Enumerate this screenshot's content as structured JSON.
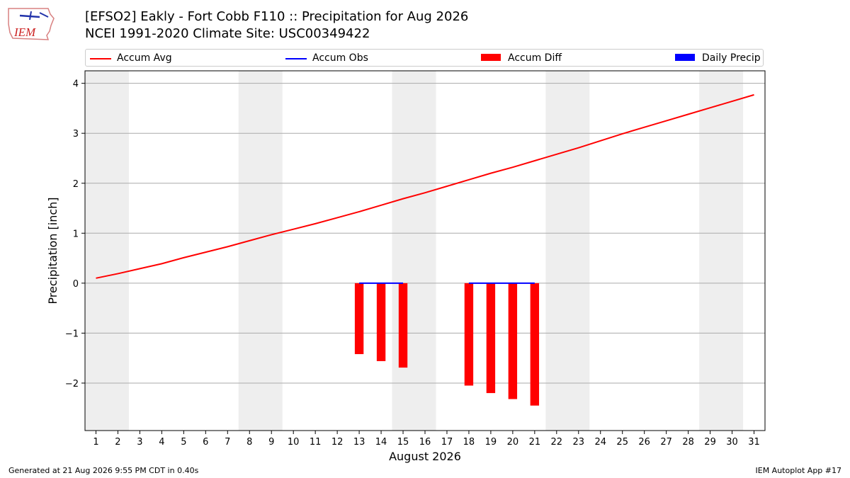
{
  "header": {
    "title_line1": "[EFSO2] Eakly - Fort Cobb F110 :: Precipitation for Aug 2026",
    "title_line2": "NCEI 1991-2020 Climate Site: USC00349422",
    "logo_text": "IEM"
  },
  "legend": {
    "items": [
      {
        "label": "Accum Avg",
        "kind": "line",
        "color": "#ff0000"
      },
      {
        "label": "Accum Obs",
        "kind": "line",
        "color": "#0000ff"
      },
      {
        "label": "Accum Diff",
        "kind": "box",
        "color": "#ff0000"
      },
      {
        "label": "Daily Precip",
        "kind": "box",
        "color": "#0000ff"
      }
    ]
  },
  "footer": {
    "generated": "Generated at 21 Aug 2026 9:55 PM CDT in 0.40s",
    "app": "IEM Autoplot App #17"
  },
  "chart_data": {
    "type": "line",
    "xlabel": "August 2026",
    "ylabel": "Precipitation [inch]",
    "x": [
      1,
      2,
      3,
      4,
      5,
      6,
      7,
      8,
      9,
      10,
      11,
      12,
      13,
      14,
      15,
      16,
      17,
      18,
      19,
      20,
      21,
      22,
      23,
      24,
      25,
      26,
      27,
      28,
      29,
      30,
      31
    ],
    "xlim": [
      0.5,
      31.5
    ],
    "ylim": [
      -2.95,
      4.25
    ],
    "yticks": [
      4,
      3,
      2,
      1,
      0,
      -1,
      -2
    ],
    "ytick_labels": [
      "4",
      "3",
      "2",
      "1",
      "0",
      "−1",
      "−2"
    ],
    "grid": true,
    "weekend_shading": [
      [
        0.5,
        2.5
      ],
      [
        7.5,
        9.5
      ],
      [
        14.5,
        16.5
      ],
      [
        21.5,
        23.5
      ],
      [
        28.5,
        30.5
      ]
    ],
    "shading_color": "#eeeeee",
    "series": [
      {
        "name": "Accum Avg",
        "type": "line",
        "color": "#ff0000",
        "x": [
          1,
          2,
          3,
          4,
          5,
          6,
          7,
          8,
          9,
          10,
          11,
          12,
          13,
          14,
          15,
          16,
          17,
          18,
          19,
          20,
          21,
          22,
          23,
          24,
          25,
          26,
          27,
          28,
          29,
          30,
          31
        ],
        "values": [
          0.1,
          0.19,
          0.29,
          0.39,
          0.51,
          0.62,
          0.73,
          0.85,
          0.97,
          1.08,
          1.19,
          1.31,
          1.43,
          1.56,
          1.69,
          1.81,
          1.94,
          2.07,
          2.2,
          2.32,
          2.45,
          2.58,
          2.71,
          2.85,
          2.99,
          3.12,
          3.25,
          3.38,
          3.51,
          3.64,
          3.77
        ]
      },
      {
        "name": "Accum Obs",
        "type": "line",
        "color": "#0000ff",
        "x": [
          13,
          14,
          15,
          18,
          19,
          20,
          21
        ],
        "values": [
          0,
          0,
          0,
          0,
          0,
          0,
          0
        ],
        "segments": [
          [
            13,
            15
          ],
          [
            18,
            21
          ]
        ]
      },
      {
        "name": "Accum Diff",
        "type": "bar",
        "color": "#ff0000",
        "x": [
          13,
          14,
          15,
          18,
          19,
          20,
          21
        ],
        "values": [
          -1.42,
          -1.56,
          -1.69,
          -2.05,
          -2.2,
          -2.32,
          -2.45
        ]
      },
      {
        "name": "Daily Precip",
        "type": "bar",
        "color": "#0000ff",
        "x": [
          13,
          14,
          15,
          18,
          19,
          20,
          21
        ],
        "values": [
          0,
          0,
          0,
          0,
          0,
          0,
          0
        ]
      }
    ]
  }
}
